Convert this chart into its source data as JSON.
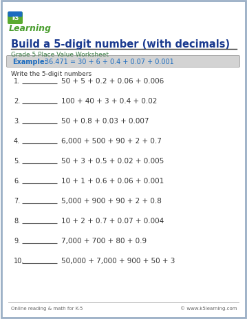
{
  "title": "Build a 5-digit number (with decimals)",
  "subtitle": "Grade 5 Place Value Worksheet",
  "example_label": "Example:",
  "example_text": "36.471 = 30 + 6 + 0.4 + 0.07 + 0.001",
  "instruction": "Write the 5-digit numbers",
  "problems": [
    "50 + 5 + 0.2 + 0.06 + 0.006",
    "100 + 40 + 3 + 0.4 + 0.02",
    "50 + 0.8 + 0.03 + 0.007",
    "6,000 + 500 + 90 + 2 + 0.7",
    "50 + 3 + 0.5 + 0.02 + 0.005",
    "10 + 1 + 0.6 + 0.06 + 0.001",
    "5,000 + 900 + 90 + 2 + 0.8",
    "10 + 2 + 0.7 + 0.07 + 0.004",
    "7,000 + 700 + 80 + 0.9",
    "50,000 + 7,000 + 900 + 50 + 3"
  ],
  "footer_left": "Online reading & math for K-5",
  "footer_right": "© www.k5learning.com",
  "title_color": "#1a3a8f",
  "subtitle_color": "#3a7d44",
  "example_color": "#1a6bbf",
  "example_bg": "#d3d3d3",
  "border_color": "#9aafc5",
  "text_color": "#333333",
  "footer_color": "#666666",
  "bg_color": "#ffffff",
  "logo_green": "#4a9e2f",
  "logo_blue": "#1a6bbf"
}
